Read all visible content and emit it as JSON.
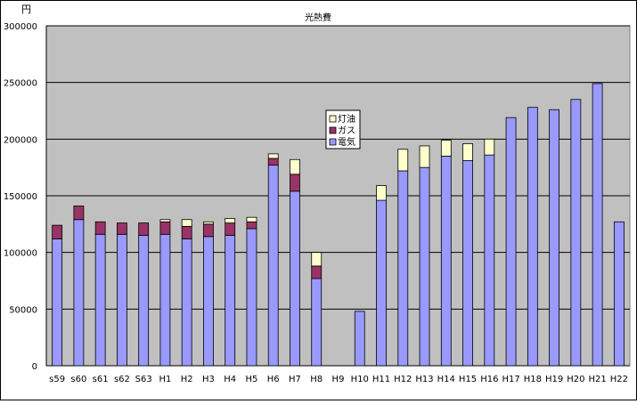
{
  "chart_data": {
    "type": "bar",
    "stacked": true,
    "title": "光熱費",
    "unit_label": "円",
    "ylim": [
      0,
      300000
    ],
    "y_ticks": [
      "0",
      "50000",
      "100000",
      "150000",
      "200000",
      "250000",
      "300000"
    ],
    "grid": true,
    "legend_position": "center",
    "categories": [
      "s59",
      "s60",
      "s61",
      "s62",
      "S63",
      "H1",
      "H2",
      "H3",
      "H4",
      "H5",
      "H6",
      "H7",
      "H8",
      "H9",
      "H10",
      "H11",
      "H12",
      "H13",
      "H14",
      "H15",
      "H16",
      "H17",
      "H18",
      "H19",
      "H20",
      "H21",
      "H22"
    ],
    "series": [
      {
        "name": "電気",
        "color": "#9999ff",
        "values": [
          112000,
          129000,
          116000,
          116000,
          115000,
          116000,
          112000,
          114000,
          115000,
          121000,
          177000,
          154000,
          77000,
          0,
          48000,
          146000,
          172000,
          175000,
          185000,
          181000,
          186000,
          219000,
          228000,
          226000,
          235000,
          249000,
          127000
        ]
      },
      {
        "name": "ガス",
        "color": "#993366",
        "values": [
          12000,
          12000,
          11000,
          10000,
          11000,
          11000,
          11000,
          11000,
          11000,
          6000,
          6000,
          15000,
          11000,
          0,
          0,
          0,
          0,
          0,
          0,
          0,
          0,
          0,
          0,
          0,
          0,
          0,
          0
        ]
      },
      {
        "name": "灯油",
        "color": "#ffffcc",
        "values": [
          0,
          0,
          0,
          0,
          0,
          2000,
          6000,
          2000,
          4000,
          4000,
          4000,
          13000,
          12000,
          0,
          0,
          13000,
          19000,
          19000,
          14000,
          15000,
          14000,
          0,
          0,
          0,
          0,
          0,
          0
        ]
      }
    ],
    "legend_order": [
      "灯油",
      "ガス",
      "電気"
    ],
    "plot_background": "#c0c0c0"
  }
}
